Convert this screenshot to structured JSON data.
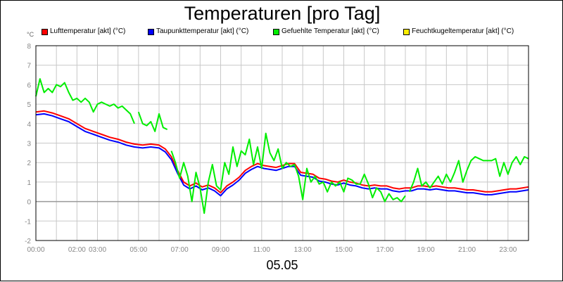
{
  "header": {
    "title": "Temperaturen [pro Tag]"
  },
  "footer": {
    "date": "05.05"
  },
  "colors": {
    "grid": "#c8c8c8",
    "zero_line": "#999999",
    "axis": "#000000"
  },
  "chart_data": {
    "type": "line",
    "title": "Temperaturen [pro Tag]",
    "xlabel": "05.05",
    "ylabel": "°C",
    "unit_label": "°C",
    "ylim": [
      -2,
      8
    ],
    "xlim": [
      0,
      24
    ],
    "grid": true,
    "legend_position": "top",
    "y_ticks": [
      -2,
      -1,
      0,
      1,
      2,
      3,
      4,
      5,
      6,
      7,
      8
    ],
    "x_ticks": [
      {
        "h": 0,
        "label": "00:00"
      },
      {
        "h": 2,
        "label": "02:00"
      },
      {
        "h": 3,
        "label": "03:00"
      },
      {
        "h": 5,
        "label": "05:00"
      },
      {
        "h": 7,
        "label": "07:00"
      },
      {
        "h": 9,
        "label": "09:00"
      },
      {
        "h": 11,
        "label": "11:00"
      },
      {
        "h": 13,
        "label": "13:00"
      },
      {
        "h": 15,
        "label": "15:00"
      },
      {
        "h": 17,
        "label": "17:00"
      },
      {
        "h": 19,
        "label": "19:00"
      },
      {
        "h": 21,
        "label": "21:00"
      },
      {
        "h": 23,
        "label": "23:00"
      }
    ],
    "series": [
      {
        "name": "Lufttemperatur [akt] (°C)",
        "color": "#ff0000",
        "width": 2,
        "points": [
          [
            0,
            4.6
          ],
          [
            0.4,
            4.65
          ],
          [
            0.8,
            4.55
          ],
          [
            1.2,
            4.4
          ],
          [
            1.6,
            4.25
          ],
          [
            2,
            4.0
          ],
          [
            2.4,
            3.75
          ],
          [
            2.8,
            3.6
          ],
          [
            3.2,
            3.45
          ],
          [
            3.6,
            3.3
          ],
          [
            4,
            3.2
          ],
          [
            4.4,
            3.05
          ],
          [
            4.8,
            2.95
          ],
          [
            5.2,
            2.9
          ],
          [
            5.6,
            2.95
          ],
          [
            6,
            2.9
          ],
          [
            6.3,
            2.7
          ],
          [
            6.6,
            2.3
          ],
          [
            6.9,
            1.6
          ],
          [
            7.2,
            1.0
          ],
          [
            7.5,
            0.8
          ],
          [
            7.8,
            0.95
          ],
          [
            8.1,
            0.75
          ],
          [
            8.4,
            0.85
          ],
          [
            8.7,
            0.7
          ],
          [
            9,
            0.45
          ],
          [
            9.3,
            0.8
          ],
          [
            9.6,
            1.0
          ],
          [
            9.9,
            1.25
          ],
          [
            10.2,
            1.6
          ],
          [
            10.5,
            1.8
          ],
          [
            10.8,
            1.95
          ],
          [
            11.1,
            1.85
          ],
          [
            11.4,
            1.8
          ],
          [
            11.7,
            1.75
          ],
          [
            12,
            1.85
          ],
          [
            12.3,
            1.95
          ],
          [
            12.6,
            1.95
          ],
          [
            12.9,
            1.5
          ],
          [
            13.2,
            1.45
          ],
          [
            13.5,
            1.4
          ],
          [
            13.8,
            1.2
          ],
          [
            14.1,
            1.15
          ],
          [
            14.4,
            1.05
          ],
          [
            14.7,
            1.0
          ],
          [
            15,
            1.1
          ],
          [
            15.3,
            1.0
          ],
          [
            15.6,
            0.95
          ],
          [
            15.9,
            0.85
          ],
          [
            16.2,
            0.8
          ],
          [
            16.5,
            0.85
          ],
          [
            16.8,
            0.8
          ],
          [
            17.1,
            0.8
          ],
          [
            17.4,
            0.7
          ],
          [
            17.7,
            0.65
          ],
          [
            18,
            0.7
          ],
          [
            18.3,
            0.7
          ],
          [
            18.6,
            0.8
          ],
          [
            18.9,
            0.8
          ],
          [
            19.2,
            0.75
          ],
          [
            19.5,
            0.8
          ],
          [
            19.8,
            0.75
          ],
          [
            20.1,
            0.7
          ],
          [
            20.4,
            0.7
          ],
          [
            20.7,
            0.65
          ],
          [
            21,
            0.6
          ],
          [
            21.3,
            0.6
          ],
          [
            21.6,
            0.55
          ],
          [
            21.9,
            0.5
          ],
          [
            22.2,
            0.5
          ],
          [
            22.5,
            0.55
          ],
          [
            22.8,
            0.6
          ],
          [
            23.1,
            0.65
          ],
          [
            23.4,
            0.65
          ],
          [
            23.7,
            0.7
          ],
          [
            24,
            0.75
          ]
        ]
      },
      {
        "name": "Taupunkttemperatur [akt] (°C)",
        "color": "#0000ff",
        "width": 2,
        "points": [
          [
            0,
            4.45
          ],
          [
            0.4,
            4.5
          ],
          [
            0.8,
            4.4
          ],
          [
            1.2,
            4.25
          ],
          [
            1.6,
            4.1
          ],
          [
            2,
            3.85
          ],
          [
            2.4,
            3.6
          ],
          [
            2.8,
            3.45
          ],
          [
            3.2,
            3.3
          ],
          [
            3.6,
            3.15
          ],
          [
            4,
            3.05
          ],
          [
            4.4,
            2.9
          ],
          [
            4.8,
            2.8
          ],
          [
            5.2,
            2.75
          ],
          [
            5.6,
            2.8
          ],
          [
            6,
            2.75
          ],
          [
            6.3,
            2.55
          ],
          [
            6.6,
            2.15
          ],
          [
            6.9,
            1.45
          ],
          [
            7.2,
            0.85
          ],
          [
            7.5,
            0.65
          ],
          [
            7.8,
            0.8
          ],
          [
            8.1,
            0.6
          ],
          [
            8.4,
            0.7
          ],
          [
            8.7,
            0.55
          ],
          [
            9,
            0.3
          ],
          [
            9.3,
            0.65
          ],
          [
            9.6,
            0.85
          ],
          [
            9.9,
            1.1
          ],
          [
            10.2,
            1.45
          ],
          [
            10.5,
            1.65
          ],
          [
            10.8,
            1.8
          ],
          [
            11.1,
            1.7
          ],
          [
            11.4,
            1.65
          ],
          [
            11.7,
            1.6
          ],
          [
            12,
            1.7
          ],
          [
            12.3,
            1.8
          ],
          [
            12.6,
            1.8
          ],
          [
            12.9,
            1.35
          ],
          [
            13.2,
            1.3
          ],
          [
            13.5,
            1.25
          ],
          [
            13.8,
            1.05
          ],
          [
            14.1,
            1.0
          ],
          [
            14.4,
            0.9
          ],
          [
            14.7,
            0.85
          ],
          [
            15,
            0.95
          ],
          [
            15.3,
            0.85
          ],
          [
            15.6,
            0.8
          ],
          [
            15.9,
            0.7
          ],
          [
            16.2,
            0.65
          ],
          [
            16.5,
            0.7
          ],
          [
            16.8,
            0.65
          ],
          [
            17.1,
            0.65
          ],
          [
            17.4,
            0.55
          ],
          [
            17.7,
            0.5
          ],
          [
            18,
            0.55
          ],
          [
            18.3,
            0.55
          ],
          [
            18.6,
            0.65
          ],
          [
            18.9,
            0.65
          ],
          [
            19.2,
            0.6
          ],
          [
            19.5,
            0.65
          ],
          [
            19.8,
            0.6
          ],
          [
            20.1,
            0.55
          ],
          [
            20.4,
            0.55
          ],
          [
            20.7,
            0.5
          ],
          [
            21,
            0.45
          ],
          [
            21.3,
            0.45
          ],
          [
            21.6,
            0.4
          ],
          [
            21.9,
            0.35
          ],
          [
            22.2,
            0.35
          ],
          [
            22.5,
            0.4
          ],
          [
            22.8,
            0.45
          ],
          [
            23.1,
            0.5
          ],
          [
            23.4,
            0.5
          ],
          [
            23.7,
            0.55
          ],
          [
            24,
            0.6
          ]
        ]
      },
      {
        "name": "Gefuehlte Temperatur [akt] (°C)",
        "color": "#00ee00",
        "width": 2,
        "segments": [
          [
            [
              0,
              5.4
            ],
            [
              0.2,
              6.3
            ],
            [
              0.4,
              5.6
            ],
            [
              0.6,
              5.8
            ],
            [
              0.8,
              5.6
            ],
            [
              1.0,
              6.0
            ],
            [
              1.2,
              5.9
            ],
            [
              1.4,
              6.1
            ],
            [
              1.6,
              5.6
            ],
            [
              1.8,
              5.2
            ],
            [
              2.0,
              5.3
            ],
            [
              2.2,
              5.1
            ],
            [
              2.4,
              5.3
            ],
            [
              2.6,
              5.1
            ],
            [
              2.8,
              4.6
            ],
            [
              3.0,
              5.0
            ],
            [
              3.2,
              5.1
            ],
            [
              3.4,
              5.0
            ],
            [
              3.6,
              4.9
            ],
            [
              3.8,
              5.0
            ],
            [
              4.0,
              4.8
            ],
            [
              4.2,
              4.9
            ],
            [
              4.4,
              4.7
            ],
            [
              4.6,
              4.5
            ],
            [
              4.8,
              4.0
            ]
          ],
          [
            [
              5.0,
              4.6
            ],
            [
              5.2,
              4.0
            ],
            [
              5.4,
              3.9
            ],
            [
              5.6,
              4.1
            ],
            [
              5.8,
              3.6
            ],
            [
              6.0,
              4.5
            ],
            [
              6.2,
              3.8
            ],
            [
              6.4,
              3.7
            ]
          ],
          [
            [
              6.6,
              2.6
            ],
            [
              6.8,
              2.0
            ],
            [
              7.0,
              1.2
            ],
            [
              7.2,
              2.0
            ],
            [
              7.4,
              1.3
            ],
            [
              7.6,
              0.0
            ],
            [
              7.8,
              1.5
            ],
            [
              8.0,
              0.7
            ],
            [
              8.2,
              -0.6
            ],
            [
              8.4,
              1.0
            ],
            [
              8.6,
              1.9
            ],
            [
              8.8,
              0.8
            ],
            [
              9.0,
              0.6
            ],
            [
              9.2,
              2.0
            ],
            [
              9.4,
              1.4
            ],
            [
              9.6,
              2.8
            ],
            [
              9.8,
              1.8
            ],
            [
              10.0,
              2.6
            ],
            [
              10.2,
              2.4
            ],
            [
              10.4,
              3.2
            ],
            [
              10.6,
              1.9
            ],
            [
              10.8,
              2.8
            ],
            [
              11.0,
              1.7
            ],
            [
              11.2,
              3.5
            ],
            [
              11.4,
              2.5
            ],
            [
              11.6,
              2.1
            ],
            [
              11.8,
              2.7
            ],
            [
              12.0,
              1.7
            ],
            [
              12.2,
              2.0
            ],
            [
              12.4,
              1.8
            ],
            [
              12.6,
              1.9
            ],
            [
              12.8,
              1.3
            ],
            [
              13.0,
              0.1
            ],
            [
              13.2,
              1.7
            ],
            [
              13.4,
              1.0
            ],
            [
              13.6,
              1.3
            ],
            [
              13.8,
              0.9
            ],
            [
              14.0,
              1.0
            ],
            [
              14.2,
              0.5
            ],
            [
              14.4,
              1.0
            ],
            [
              14.6,
              0.8
            ],
            [
              14.8,
              1.0
            ],
            [
              15.0,
              0.5
            ],
            [
              15.2,
              1.2
            ],
            [
              15.4,
              1.1
            ],
            [
              15.6,
              0.9
            ],
            [
              15.8,
              0.9
            ],
            [
              16.0,
              1.4
            ],
            [
              16.2,
              0.9
            ],
            [
              16.4,
              0.2
            ],
            [
              16.6,
              0.7
            ],
            [
              16.8,
              0.5
            ],
            [
              17.0,
              0.0
            ],
            [
              17.2,
              0.4
            ],
            [
              17.4,
              0.1
            ],
            [
              17.6,
              0.2
            ],
            [
              17.8,
              0.0
            ],
            [
              18.0,
              0.3
            ]
          ],
          [
            [
              18.2,
              0.5
            ],
            [
              18.4,
              1.0
            ],
            [
              18.6,
              1.7
            ],
            [
              18.8,
              0.8
            ],
            [
              19.0,
              1.0
            ],
            [
              19.2,
              0.7
            ],
            [
              19.4,
              1.0
            ],
            [
              19.6,
              1.3
            ],
            [
              19.8,
              0.9
            ],
            [
              20.0,
              1.4
            ],
            [
              20.2,
              1.0
            ],
            [
              20.4,
              1.5
            ],
            [
              20.6,
              2.1
            ],
            [
              20.8,
              1.0
            ],
            [
              21.0,
              1.6
            ],
            [
              21.2,
              2.1
            ],
            [
              21.4,
              2.3
            ],
            [
              21.6,
              2.2
            ],
            [
              21.8,
              2.1
            ],
            [
              22.0,
              2.1
            ],
            [
              22.2,
              2.1
            ],
            [
              22.4,
              2.2
            ],
            [
              22.6,
              1.3
            ],
            [
              22.8,
              2.0
            ],
            [
              23.0,
              1.4
            ],
            [
              23.2,
              2.0
            ],
            [
              23.4,
              2.3
            ],
            [
              23.6,
              1.9
            ],
            [
              23.8,
              2.3
            ],
            [
              24.0,
              2.2
            ]
          ]
        ]
      },
      {
        "name": "Feuchtkugeltemperatur [akt] (°C)",
        "color": "#ffee00",
        "width": 2,
        "points": []
      }
    ]
  }
}
